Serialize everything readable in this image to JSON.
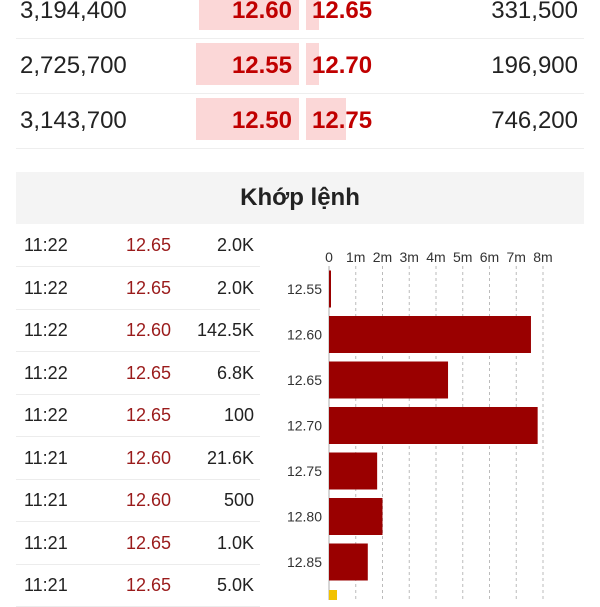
{
  "order_book": {
    "rows": [
      {
        "bid_volume": "3,194,400",
        "bid_price": "12.60",
        "ask_price": "12.65",
        "ask_volume": "331,500",
        "bid_fill": 0.4,
        "ask_fill": 0.05
      },
      {
        "bid_volume": "2,725,700",
        "bid_price": "12.55",
        "ask_price": "12.70",
        "ask_volume": "196,900",
        "bid_fill": 0.41,
        "ask_fill": 0.05
      },
      {
        "bid_volume": "3,143,700",
        "bid_price": "12.50",
        "ask_price": "12.75",
        "ask_volume": "746,200",
        "bid_fill": 0.41,
        "ask_fill": 0.16
      }
    ]
  },
  "section": {
    "title": "Khớp lệnh"
  },
  "trades": [
    {
      "time": "11:22",
      "price": "12.65",
      "volume": "2.0K"
    },
    {
      "time": "11:22",
      "price": "12.65",
      "volume": "2.0K"
    },
    {
      "time": "11:22",
      "price": "12.60",
      "volume": "142.5K"
    },
    {
      "time": "11:22",
      "price": "12.65",
      "volume": "6.8K"
    },
    {
      "time": "11:22",
      "price": "12.65",
      "volume": "100"
    },
    {
      "time": "11:21",
      "price": "12.60",
      "volume": "21.6K"
    },
    {
      "time": "11:21",
      "price": "12.60",
      "volume": "500"
    },
    {
      "time": "11:21",
      "price": "12.65",
      "volume": "1.0K"
    },
    {
      "time": "11:21",
      "price": "12.65",
      "volume": "5.0K"
    }
  ],
  "colors": {
    "price_text": "#c00000",
    "trade_price_text": "#9a1b1b",
    "bar_fill": "#9a0000",
    "bar_highlight": "#f2c200",
    "depth_bar": "#fbd7d7",
    "grid": "#bbbbbb"
  },
  "chart_data": {
    "type": "bar",
    "orientation": "horizontal",
    "categories": [
      "12.55",
      "12.60",
      "12.65",
      "12.70",
      "12.75",
      "12.80",
      "12.85"
    ],
    "values": [
      0.05,
      7.55,
      4.45,
      7.8,
      1.8,
      2.0,
      1.45
    ],
    "x_ticks": [
      "0",
      "1m",
      "2m",
      "3m",
      "4m",
      "5m",
      "6m",
      "7m",
      "8m"
    ],
    "xlim": [
      0,
      8
    ],
    "grid": true,
    "partial_last_bar": {
      "color": "yellow"
    }
  }
}
